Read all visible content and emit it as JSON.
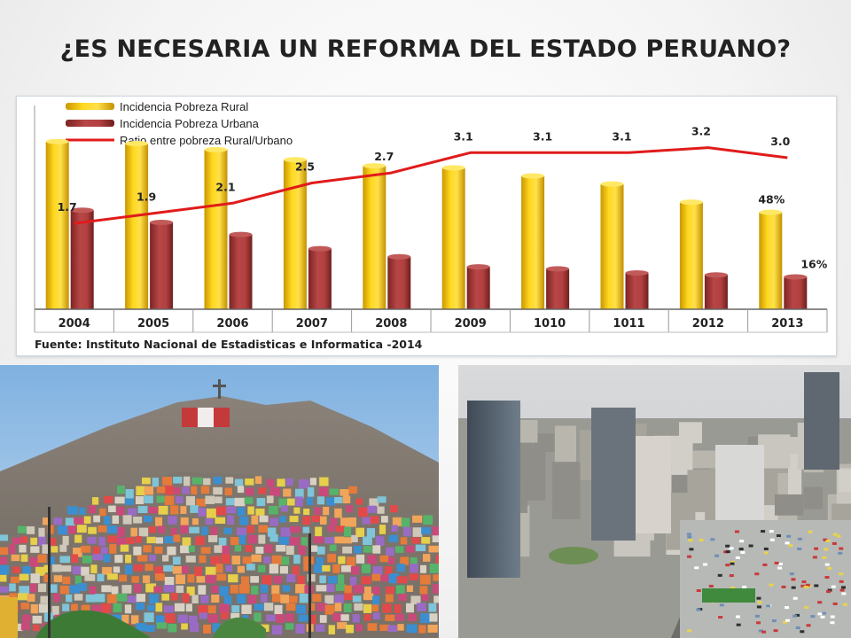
{
  "slide": {
    "title": "¿ES NECESARIA UN REFORMA DEL ESTADO PERUANO?"
  },
  "chart_data": {
    "type": "bar",
    "categories": [
      "2004",
      "2005",
      "2006",
      "2007",
      "2008",
      "2009",
      "1010",
      "1011",
      "2012",
      "2013"
    ],
    "series": [
      {
        "name": "Incidencia Pobreza Rural",
        "type": "bar",
        "color": "#f2c300",
        "values": [
          83,
          82,
          79,
          74,
          71,
          70,
          66,
          62,
          53,
          48
        ]
      },
      {
        "name": "Incidencia Pobreza Urbana",
        "type": "bar",
        "color": "#b03a3a",
        "values": [
          49,
          43,
          37,
          30,
          26,
          21,
          20,
          18,
          17,
          16
        ]
      },
      {
        "name": "Ratio entre pobreza Rural/Urbano",
        "type": "line",
        "color": "#e11b1b",
        "values": [
          1.7,
          1.9,
          2.1,
          2.5,
          2.7,
          3.1,
          3.1,
          3.1,
          3.2,
          3.0
        ],
        "data_labels": [
          "1.7",
          "1.9",
          "2.1",
          "2.5",
          "2.7",
          "3.1",
          "3.1",
          "3.1",
          "3.2",
          "3.0"
        ]
      }
    ],
    "bar_data_labels": {
      "rural_last": "48%",
      "urban_last": "16%"
    },
    "ylim_bars": [
      0,
      100
    ],
    "ylim_ratio": [
      0,
      4
    ],
    "legend_position": "top-left",
    "source": "Fuente: Instituto Nacional de Estadisticas e Informatica -2014",
    "grid": false
  },
  "photos": [
    {
      "icon": "hillside-city-photo"
    },
    {
      "icon": "city-skyline-photo"
    }
  ]
}
